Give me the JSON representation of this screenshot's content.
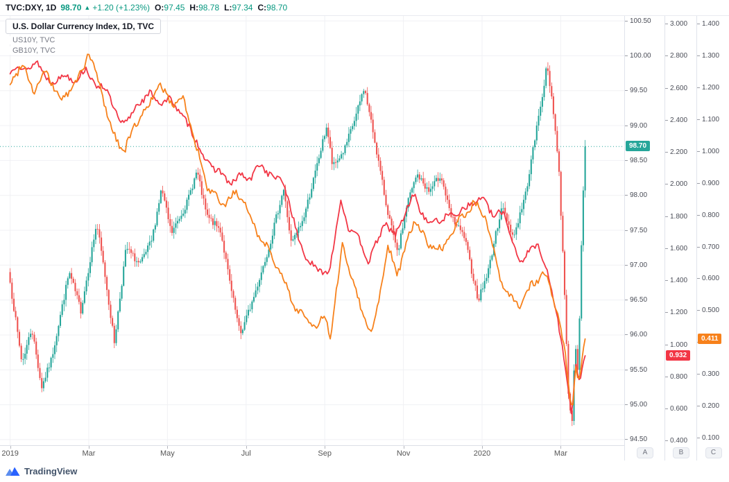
{
  "header": {
    "symbol": "TVC:DXY, 1D",
    "last_price": "98.70",
    "direction_arrow": "▲",
    "change": "+1.20 (+1.23%)",
    "open_label": "O:",
    "open": "97.45",
    "high_label": "H:",
    "high": "98.78",
    "low_label": "L:",
    "low": "97.34",
    "close_label": "C:",
    "close": "98.70"
  },
  "legend": {
    "main": "U.S. Dollar Currency Index, 1D, TVC",
    "us10y": "US10Y, TVC",
    "gb10y": "GB10Y, TVC"
  },
  "price_labels": {
    "dxy": {
      "text": "98.70",
      "value": 98.7,
      "color": "#26a69a",
      "scale": "A"
    },
    "us10y": {
      "text": "0.932",
      "value": 0.932,
      "color": "#f23645",
      "scale": "B"
    },
    "gb10y": {
      "text": "0.411",
      "value": 0.411,
      "color": "#f7811b",
      "scale": "C"
    }
  },
  "scale_buttons": {
    "a": "A",
    "b": "B",
    "c": "C"
  },
  "footer": {
    "brand": "TradingView"
  },
  "colors": {
    "candle_up": "#26a69a",
    "candle_down": "#ef5350",
    "us10y_line": "#f23645",
    "gb10y_line": "#f7811b",
    "grid": "#f0f1f4",
    "header_value": "#089981"
  },
  "chart_data": {
    "type": "candlestick",
    "title": "U.S. Dollar Currency Index, 1D, TVC",
    "grid": true,
    "x_axis": {
      "t_start": 0,
      "t_end": 14.62,
      "labels": [
        {
          "text": "2019",
          "t": 0
        },
        {
          "text": "Mar",
          "t": 2
        },
        {
          "text": "May",
          "t": 4
        },
        {
          "text": "Jul",
          "t": 6
        },
        {
          "text": "Sep",
          "t": 8
        },
        {
          "text": "Nov",
          "t": 10
        },
        {
          "text": "2020",
          "t": 12
        },
        {
          "text": "Mar",
          "t": 14
        }
      ]
    },
    "scales": {
      "A": {
        "min": 94.42,
        "max": 100.58,
        "decimals": 2,
        "ticks": [
          100.5,
          100.0,
          99.5,
          99.0,
          98.5,
          98.0,
          97.5,
          97.0,
          96.5,
          96.0,
          95.5,
          95.0,
          94.5
        ]
      },
      "B": {
        "min": 0.374,
        "max": 3.055,
        "decimals": 3,
        "ticks": [
          3.0,
          2.8,
          2.6,
          2.4,
          2.2,
          2.0,
          1.8,
          1.6,
          1.4,
          1.2,
          1.0,
          0.8,
          0.6,
          0.4
        ]
      },
      "C": {
        "min": 0.077,
        "max": 1.428,
        "decimals": 3,
        "ticks": [
          1.4,
          1.3,
          1.2,
          1.1,
          1.0,
          0.9,
          0.8,
          0.7,
          0.6,
          0.5,
          0.4,
          0.3,
          0.2,
          0.1
        ]
      }
    },
    "series": [
      {
        "name": "DXY",
        "type": "candlestick",
        "scale": "A",
        "last": 98.7,
        "up_color": "#26a69a",
        "down_color": "#ef5350",
        "waypoints": [
          [
            0,
            96.75
          ],
          [
            0.3,
            95.6
          ],
          [
            0.55,
            96.1
          ],
          [
            0.8,
            95.25
          ],
          [
            1.05,
            95.65
          ],
          [
            1.5,
            96.9
          ],
          [
            1.8,
            96.35
          ],
          [
            2.2,
            97.6
          ],
          [
            2.4,
            96.9
          ],
          [
            2.65,
            95.9
          ],
          [
            2.95,
            97.25
          ],
          [
            3.3,
            97.0
          ],
          [
            3.6,
            97.35
          ],
          [
            3.85,
            98.1
          ],
          [
            4.1,
            97.45
          ],
          [
            4.5,
            97.9
          ],
          [
            4.75,
            98.35
          ],
          [
            5.0,
            97.7
          ],
          [
            5.35,
            97.5
          ],
          [
            5.6,
            96.7
          ],
          [
            5.85,
            96.0
          ],
          [
            6.2,
            96.55
          ],
          [
            6.6,
            97.3
          ],
          [
            6.95,
            98.1
          ],
          [
            7.15,
            97.3
          ],
          [
            7.45,
            97.65
          ],
          [
            7.75,
            98.3
          ],
          [
            8.05,
            99.0
          ],
          [
            8.2,
            98.4
          ],
          [
            8.5,
            98.65
          ],
          [
            8.8,
            99.15
          ],
          [
            9.0,
            99.55
          ],
          [
            9.25,
            98.85
          ],
          [
            9.55,
            97.9
          ],
          [
            9.85,
            97.15
          ],
          [
            10.1,
            97.9
          ],
          [
            10.35,
            98.3
          ],
          [
            10.65,
            98.05
          ],
          [
            10.95,
            98.3
          ],
          [
            11.2,
            97.7
          ],
          [
            11.55,
            97.4
          ],
          [
            11.9,
            96.5
          ],
          [
            12.15,
            96.9
          ],
          [
            12.5,
            97.85
          ],
          [
            12.8,
            97.4
          ],
          [
            13.1,
            98.0
          ],
          [
            13.4,
            99.0
          ],
          [
            13.65,
            99.85
          ],
          [
            13.8,
            99.3
          ],
          [
            13.95,
            98.4
          ],
          [
            14.1,
            96.6
          ],
          [
            14.2,
            95.1
          ],
          [
            14.28,
            94.68
          ],
          [
            14.36,
            95.9
          ],
          [
            14.44,
            95.4
          ],
          [
            14.54,
            97.6
          ],
          [
            14.62,
            98.7
          ]
        ]
      },
      {
        "name": "US10Y",
        "type": "line",
        "scale": "B",
        "color": "#f23645",
        "last": 0.932,
        "waypoints": [
          [
            0,
            2.69
          ],
          [
            0.2,
            2.75
          ],
          [
            0.45,
            2.71
          ],
          [
            0.7,
            2.77
          ],
          [
            1.0,
            2.63
          ],
          [
            1.35,
            2.68
          ],
          [
            1.65,
            2.65
          ],
          [
            1.95,
            2.72
          ],
          [
            2.15,
            2.62
          ],
          [
            2.45,
            2.6
          ],
          [
            2.8,
            2.37
          ],
          [
            3.0,
            2.41
          ],
          [
            3.25,
            2.5
          ],
          [
            3.55,
            2.57
          ],
          [
            3.8,
            2.51
          ],
          [
            4.1,
            2.53
          ],
          [
            4.45,
            2.4
          ],
          [
            4.75,
            2.27
          ],
          [
            5.0,
            2.13
          ],
          [
            5.3,
            2.09
          ],
          [
            5.6,
            2.0
          ],
          [
            5.85,
            2.06
          ],
          [
            6.1,
            2.03
          ],
          [
            6.35,
            2.13
          ],
          [
            6.65,
            2.05
          ],
          [
            6.95,
            2.02
          ],
          [
            7.1,
            1.88
          ],
          [
            7.25,
            1.73
          ],
          [
            7.55,
            1.52
          ],
          [
            7.9,
            1.46
          ],
          [
            8.1,
            1.44
          ],
          [
            8.4,
            1.9
          ],
          [
            8.6,
            1.73
          ],
          [
            8.85,
            1.67
          ],
          [
            9.1,
            1.52
          ],
          [
            9.55,
            1.76
          ],
          [
            9.8,
            1.68
          ],
          [
            10.25,
            1.94
          ],
          [
            10.6,
            1.76
          ],
          [
            10.95,
            1.78
          ],
          [
            11.4,
            1.83
          ],
          [
            11.75,
            1.88
          ],
          [
            12.0,
            1.92
          ],
          [
            12.3,
            1.8
          ],
          [
            12.55,
            1.83
          ],
          [
            12.95,
            1.51
          ],
          [
            13.2,
            1.59
          ],
          [
            13.45,
            1.62
          ],
          [
            13.65,
            1.46
          ],
          [
            13.95,
            1.13
          ],
          [
            14.18,
            0.76
          ],
          [
            14.28,
            0.54
          ],
          [
            14.38,
            0.9
          ],
          [
            14.48,
            0.76
          ],
          [
            14.62,
            0.932
          ]
        ]
      },
      {
        "name": "GB10Y",
        "type": "line",
        "scale": "C",
        "color": "#f7811b",
        "last": 0.411,
        "waypoints": [
          [
            0,
            1.21
          ],
          [
            0.3,
            1.28
          ],
          [
            0.6,
            1.19
          ],
          [
            0.9,
            1.25
          ],
          [
            1.3,
            1.16
          ],
          [
            1.7,
            1.22
          ],
          [
            2.0,
            1.31
          ],
          [
            2.3,
            1.2
          ],
          [
            2.6,
            1.06
          ],
          [
            2.9,
            1.0
          ],
          [
            3.2,
            1.09
          ],
          [
            3.5,
            1.14
          ],
          [
            3.8,
            1.21
          ],
          [
            4.1,
            1.15
          ],
          [
            4.4,
            1.17
          ],
          [
            4.7,
            1.03
          ],
          [
            5.0,
            0.89
          ],
          [
            5.4,
            0.83
          ],
          [
            5.7,
            0.87
          ],
          [
            6.0,
            0.83
          ],
          [
            6.3,
            0.74
          ],
          [
            6.6,
            0.69
          ],
          [
            6.9,
            0.61
          ],
          [
            7.2,
            0.52
          ],
          [
            7.5,
            0.48
          ],
          [
            7.8,
            0.44
          ],
          [
            8.0,
            0.49
          ],
          [
            8.15,
            0.41
          ],
          [
            8.45,
            0.71
          ],
          [
            8.65,
            0.62
          ],
          [
            8.95,
            0.5
          ],
          [
            9.2,
            0.42
          ],
          [
            9.6,
            0.7
          ],
          [
            9.85,
            0.62
          ],
          [
            10.3,
            0.79
          ],
          [
            10.6,
            0.71
          ],
          [
            11.0,
            0.69
          ],
          [
            11.4,
            0.78
          ],
          [
            11.8,
            0.84
          ],
          [
            12.1,
            0.79
          ],
          [
            12.45,
            0.6
          ],
          [
            12.7,
            0.54
          ],
          [
            12.95,
            0.52
          ],
          [
            13.25,
            0.58
          ],
          [
            13.6,
            0.62
          ],
          [
            13.9,
            0.5
          ],
          [
            14.1,
            0.38
          ],
          [
            14.2,
            0.26
          ],
          [
            14.3,
            0.18
          ],
          [
            14.38,
            0.33
          ],
          [
            14.46,
            0.27
          ],
          [
            14.55,
            0.34
          ],
          [
            14.62,
            0.411
          ]
        ]
      }
    ]
  }
}
